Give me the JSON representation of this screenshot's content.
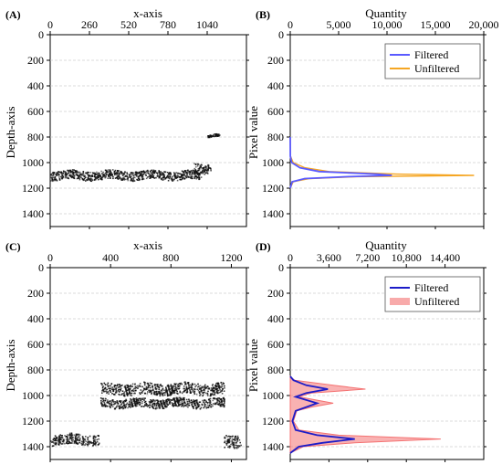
{
  "colors": {
    "filtered_b": "#5a5aff",
    "unfiltered_b": "#f5a623",
    "filtered_d": "#1c1cc8",
    "unfiltered_d": "#f47272",
    "scatter": "#111111",
    "grid": "#d0d0d0"
  },
  "chart_data": [
    {
      "panel_label": "(A)",
      "type": "scatter",
      "xlabel": "x-axis",
      "ylabel": "Depth-axis",
      "xlim": [
        0,
        1300
      ],
      "ylim": [
        1500,
        0
      ],
      "y_inverted": true,
      "x_ticks": [
        0,
        260,
        520,
        780,
        1040
      ],
      "y_ticks": [
        0,
        200,
        400,
        600,
        800,
        1000,
        1200,
        1400
      ],
      "grid": true,
      "bands": [
        {
          "x": [
            0,
            1000
          ],
          "depth_top": 1060,
          "depth_bottom": 1130
        },
        {
          "x": [
            950,
            1060
          ],
          "depth_top": 1000,
          "depth_bottom": 1080
        },
        {
          "x": [
            1040,
            1120
          ],
          "depth_top": 780,
          "depth_bottom": 800
        }
      ]
    },
    {
      "panel_label": "(B)",
      "type": "line",
      "xlabel": "Quantity",
      "ylabel": "Pixel value",
      "xlim": [
        0,
        20000
      ],
      "ylim": [
        1500,
        0
      ],
      "y_inverted": true,
      "x_tick_labels": [
        "0",
        "5,000",
        "10,000",
        "15,000",
        "20,000"
      ],
      "y_ticks": [
        0,
        200,
        400,
        600,
        800,
        1000,
        1200,
        1400
      ],
      "grid": true,
      "legend": "top-right",
      "series": [
        {
          "name": "Filtered",
          "points": [
            [
              0,
              800
            ],
            [
              10,
              950
            ],
            [
              150,
              1000
            ],
            [
              1000,
              1040
            ],
            [
              3000,
              1070
            ],
            [
              9000,
              1090
            ],
            [
              10500,
              1100
            ],
            [
              6000,
              1110
            ],
            [
              1500,
              1125
            ],
            [
              200,
              1150
            ],
            [
              0,
              1200
            ]
          ]
        },
        {
          "name": "Unfiltered",
          "points": [
            [
              0,
              800
            ],
            [
              30,
              950
            ],
            [
              300,
              1000
            ],
            [
              1500,
              1040
            ],
            [
              4000,
              1070
            ],
            [
              11000,
              1090
            ],
            [
              19000,
              1100
            ],
            [
              7000,
              1110
            ],
            [
              2000,
              1125
            ],
            [
              300,
              1150
            ],
            [
              0,
              1200
            ]
          ]
        }
      ]
    },
    {
      "panel_label": "(C)",
      "type": "scatter",
      "xlabel": "x-axis",
      "ylabel": "Depth-axis",
      "xlim": [
        0,
        1300
      ],
      "ylim": [
        1500,
        0
      ],
      "y_inverted": true,
      "x_ticks": [
        0,
        400,
        800,
        1200
      ],
      "y_ticks": [
        0,
        200,
        400,
        600,
        800,
        1000,
        1200,
        1400
      ],
      "grid": true,
      "bands": [
        {
          "x": [
            0,
            320
          ],
          "depth_top": 1300,
          "depth_bottom": 1380
        },
        {
          "x": [
            330,
            1150
          ],
          "depth_top": 900,
          "depth_bottom": 990
        },
        {
          "x": [
            330,
            1150
          ],
          "depth_top": 1020,
          "depth_bottom": 1090
        },
        {
          "x": [
            1150,
            1260
          ],
          "depth_top": 1300,
          "depth_bottom": 1400
        }
      ]
    },
    {
      "panel_label": "(D)",
      "type": "line",
      "xlabel": "Quantity",
      "ylabel": "Pixel value",
      "xlim": [
        0,
        18000
      ],
      "ylim": [
        1500,
        0
      ],
      "y_inverted": true,
      "x_tick_labels": [
        "0",
        "3,600",
        "7,200",
        "10,800",
        "14,400"
      ],
      "y_ticks": [
        0,
        200,
        400,
        600,
        800,
        1000,
        1200,
        1400
      ],
      "grid": true,
      "legend": "top-right",
      "series": [
        {
          "name": "Filtered",
          "points": [
            [
              0,
              850
            ],
            [
              300,
              880
            ],
            [
              1500,
              920
            ],
            [
              3500,
              950
            ],
            [
              1500,
              980
            ],
            [
              500,
              1010
            ],
            [
              2500,
              1060
            ],
            [
              1500,
              1090
            ],
            [
              500,
              1120
            ],
            [
              200,
              1200
            ],
            [
              500,
              1270
            ],
            [
              2500,
              1310
            ],
            [
              6000,
              1340
            ],
            [
              3000,
              1370
            ],
            [
              800,
              1400
            ],
            [
              0,
              1450
            ]
          ]
        },
        {
          "name": "Unfiltered",
          "points": [
            [
              0,
              850
            ],
            [
              400,
              880
            ],
            [
              4000,
              920
            ],
            [
              7000,
              950
            ],
            [
              2000,
              980
            ],
            [
              800,
              1010
            ],
            [
              4000,
              1060
            ],
            [
              2000,
              1090
            ],
            [
              600,
              1120
            ],
            [
              300,
              1200
            ],
            [
              800,
              1270
            ],
            [
              4500,
              1310
            ],
            [
              14000,
              1340
            ],
            [
              6000,
              1370
            ],
            [
              1200,
              1400
            ],
            [
              0,
              1450
            ]
          ]
        }
      ]
    }
  ]
}
